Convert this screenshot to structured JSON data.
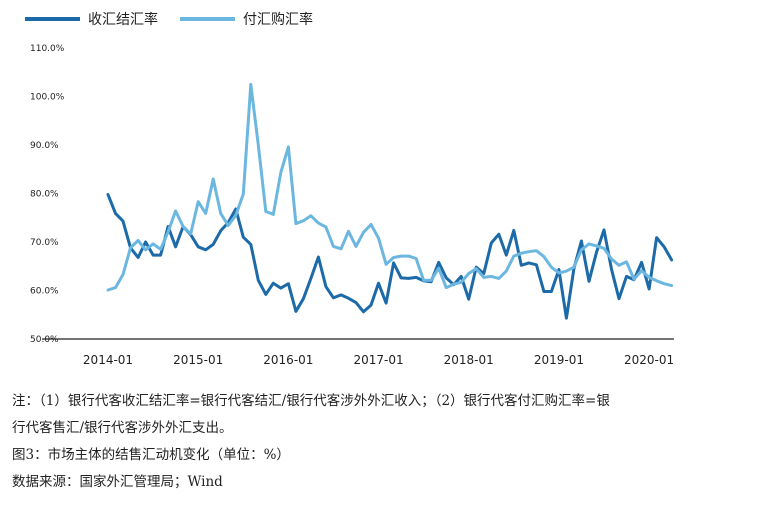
{
  "chart_data": {
    "type": "line",
    "title": "",
    "xlabel": "",
    "ylabel": "",
    "ylim": [
      50,
      110
    ],
    "y_ticks": [
      "110.0%",
      "100.0%",
      "90.0%",
      "80.0%",
      "70.0%",
      "60.0%",
      "50.0%"
    ],
    "x_ticks": [
      "2014-01",
      "2015-01",
      "2016-01",
      "2017-01",
      "2018-01",
      "2019-01",
      "2020-01"
    ],
    "x_start": "2014-01",
    "legend_position": "top-left",
    "grid": false,
    "series": [
      {
        "name": "收汇结汇率",
        "color": "#1d6aa8",
        "values": [
          79.8,
          75.9,
          74.3,
          68.8,
          66.8,
          70.0,
          67.3,
          67.3,
          73.2,
          69.0,
          73.2,
          71.5,
          69.0,
          68.4,
          69.5,
          72.3,
          74.0,
          76.8,
          71.0,
          69.5,
          62.1,
          59.2,
          61.5,
          60.5,
          61.4,
          55.7,
          58.3,
          62.5,
          66.9,
          60.8,
          58.5,
          59.1,
          58.4,
          57.5,
          55.6,
          57.0,
          61.5,
          57.4,
          65.7,
          62.6,
          62.5,
          62.7,
          62.0,
          61.8,
          65.8,
          62.6,
          61.2,
          62.9,
          58.2,
          64.8,
          63.5,
          69.8,
          71.6,
          67.3,
          72.4,
          65.2,
          65.7,
          65.3,
          59.8,
          59.8,
          64.3,
          54.3,
          64.5,
          70.2,
          61.9,
          67.9,
          72.5,
          64.4,
          58.3,
          62.9,
          62.2,
          65.8,
          60.3,
          70.9,
          69.0,
          66.3
        ]
      },
      {
        "name": "付汇购汇率",
        "color": "#6cb7e0",
        "values": [
          60.1,
          60.6,
          63.3,
          68.8,
          70.3,
          68.4,
          69.6,
          68.5,
          72.1,
          76.4,
          73.2,
          71.7,
          78.3,
          75.9,
          83.0,
          75.9,
          73.4,
          75.5,
          79.9,
          102.5,
          90.0,
          76.3,
          75.7,
          84.3,
          89.6,
          73.8,
          74.4,
          75.4,
          73.9,
          73.1,
          69.1,
          68.6,
          72.2,
          69.1,
          72.0,
          73.6,
          70.8,
          65.4,
          66.8,
          67.1,
          67.1,
          66.6,
          62.1,
          62.1,
          64.6,
          60.6,
          61.3,
          61.7,
          63.5,
          64.5,
          62.7,
          62.9,
          62.5,
          64.0,
          67.1,
          67.7,
          68.0,
          68.2,
          67.0,
          64.8,
          63.6,
          64.0,
          64.8,
          68.4,
          69.6,
          69.2,
          68.7,
          66.5,
          65.2,
          65.9,
          62.3,
          64.1,
          62.7,
          62.0,
          61.4,
          61.0
        ]
      }
    ]
  },
  "notes": {
    "line1": "注：（1）银行代客收汇结汇率=银行代客结汇/银行代客涉外外汇收入；（2）银行代客付汇购汇率=银",
    "line2": "行代客售汇/银行代客涉外外汇支出。",
    "caption": "图3：市场主体的结售汇动机变化（单位：%）",
    "source": "数据来源：国家外汇管理局；Wind"
  }
}
